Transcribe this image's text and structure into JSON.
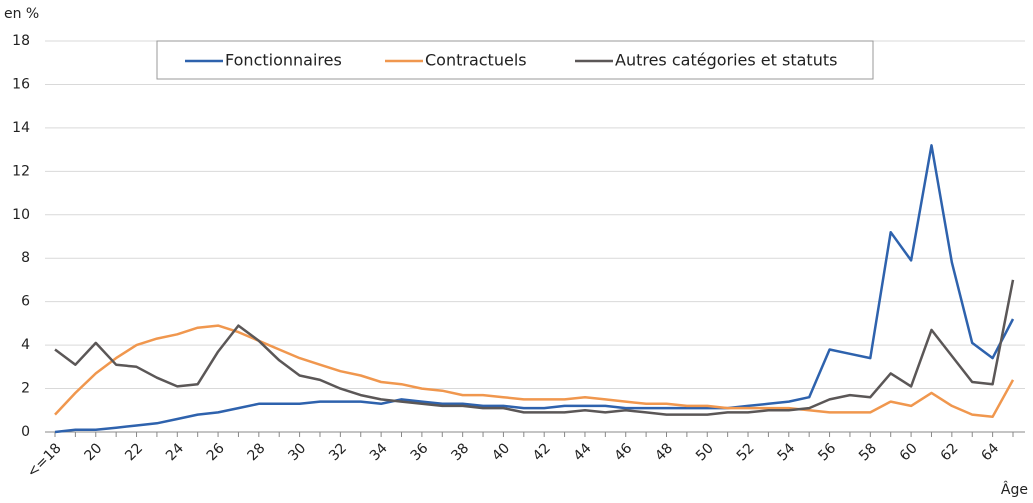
{
  "chart_data": {
    "type": "line",
    "y_label": "en %",
    "x_label": "Âge",
    "categories": [
      "<=18",
      null,
      "20",
      null,
      "22",
      null,
      "24",
      null,
      "26",
      null,
      "28",
      null,
      "30",
      null,
      "32",
      null,
      "34",
      null,
      "36",
      null,
      "38",
      null,
      "40",
      null,
      "42",
      null,
      "44",
      null,
      "46",
      null,
      "48",
      null,
      "50",
      null,
      "52",
      null,
      "54",
      null,
      "56",
      null,
      "58",
      null,
      "60",
      null,
      "62",
      null,
      "64",
      null
    ],
    "series": [
      {
        "name": "Fonctionnaires",
        "color": "#2e62ad",
        "values": [
          0.0,
          0.1,
          0.1,
          0.2,
          0.3,
          0.4,
          0.6,
          0.8,
          0.9,
          1.1,
          1.3,
          1.3,
          1.3,
          1.4,
          1.4,
          1.4,
          1.3,
          1.5,
          1.4,
          1.3,
          1.3,
          1.2,
          1.2,
          1.1,
          1.1,
          1.2,
          1.2,
          1.2,
          1.1,
          1.1,
          1.1,
          1.1,
          1.1,
          1.1,
          1.2,
          1.3,
          1.4,
          1.6,
          3.8,
          3.6,
          3.4,
          9.2,
          7.9,
          13.2,
          7.8,
          4.1,
          3.4,
          5.2
        ]
      },
      {
        "name": "Contractuels",
        "color": "#f0974e",
        "values": [
          0.8,
          1.8,
          2.7,
          3.4,
          4.0,
          4.3,
          4.5,
          4.8,
          4.9,
          4.6,
          4.2,
          3.8,
          3.4,
          3.1,
          2.8,
          2.6,
          2.3,
          2.2,
          2.0,
          1.9,
          1.7,
          1.7,
          1.6,
          1.5,
          1.5,
          1.5,
          1.6,
          1.5,
          1.4,
          1.3,
          1.3,
          1.2,
          1.2,
          1.1,
          1.1,
          1.1,
          1.1,
          1.0,
          0.9,
          0.9,
          0.9,
          1.4,
          1.2,
          1.8,
          1.2,
          0.8,
          0.7,
          2.4
        ]
      },
      {
        "name": "Autres catégories et statuts",
        "color": "#5b5757",
        "values": [
          3.8,
          3.1,
          4.1,
          3.1,
          3.0,
          2.5,
          2.1,
          2.2,
          3.7,
          4.9,
          4.2,
          3.3,
          2.6,
          2.4,
          2.0,
          1.7,
          1.5,
          1.4,
          1.3,
          1.2,
          1.2,
          1.1,
          1.1,
          0.9,
          0.9,
          0.9,
          1.0,
          0.9,
          1.0,
          0.9,
          0.8,
          0.8,
          0.8,
          0.9,
          0.9,
          1.0,
          1.0,
          1.1,
          1.5,
          1.7,
          1.6,
          2.7,
          2.1,
          4.7,
          3.5,
          2.3,
          2.2,
          7.0
        ]
      }
    ],
    "ylim": [
      0,
      18
    ],
    "yticks": [
      0,
      2,
      4,
      6,
      8,
      10,
      12,
      14,
      16,
      18
    ],
    "grid": true,
    "legend": "top"
  }
}
